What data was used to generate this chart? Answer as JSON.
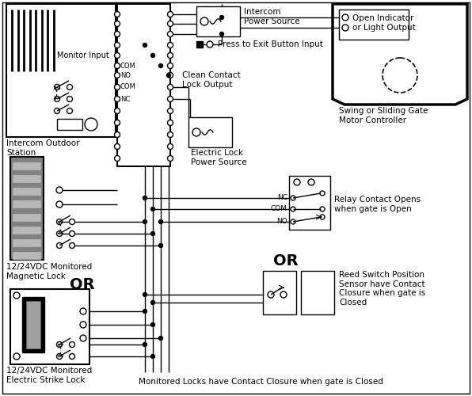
{
  "bg_color": "#ffffff",
  "labels": {
    "intercom_power": "Intercom\nPower Source",
    "press_exit": "Press to Exit Button Input",
    "clean_contact": "Clean Contact\nLock Output",
    "electric_lock_power": "Electric Lock\nPower Source",
    "intercom_outdoor": "Intercom Outdoor\nStation",
    "monitor_input": "Monitor Input",
    "magnetic_lock": "12/24VDC Monitored\nMagnetic Lock",
    "electric_strike": "12/24VDC Monitored\nElectric Strike Lock",
    "gate_motor": "Swing or Sliding Gate\nMotor Controller",
    "open_indicator": "Open Indicator\nor Light Output",
    "relay_contact": "Relay Contact Opens\nwhen gate is Open",
    "reed_switch": "Reed Switch Position\nSensor have Contact\nClosure when gate is\nClosed",
    "or1": "OR",
    "or2": "OR",
    "bottom_note": "Monitored Locks have Contact Closure when gate is Closed",
    "com": "COM",
    "no": "NO",
    "nc": "NC"
  }
}
